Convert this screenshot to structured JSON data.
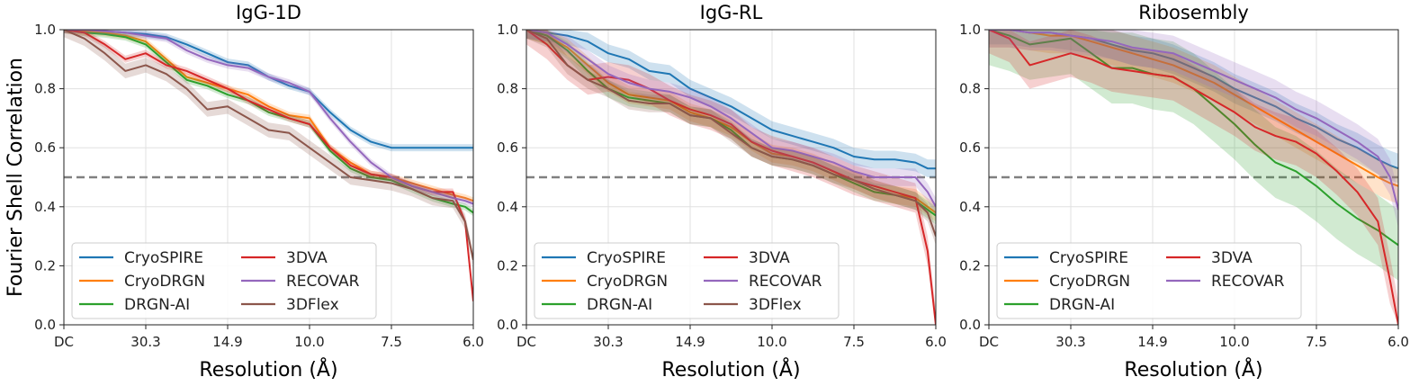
{
  "figure": {
    "ylabel": "Fourier Shell Correlation",
    "xlabel": "Resolution (Å)",
    "x_tick_labels": [
      "DC",
      "30.3",
      "14.9",
      "10.0",
      "7.5",
      "6.0"
    ],
    "y_tick_labels": [
      "0.0",
      "0.2",
      "0.4",
      "0.6",
      "0.8",
      "1.0"
    ],
    "threshold": 0.5
  },
  "colors": {
    "CryoSPIRE": "#1f77b4",
    "CryoDRGN": "#ff7f0e",
    "DRGN-AI": "#2ca02c",
    "3DVA": "#d62728",
    "RECOVAR": "#9467bd",
    "3DFlex": "#8c564b",
    "threshold": "#808080",
    "grid": "#e0e0e0"
  },
  "chart_data": [
    {
      "type": "line",
      "title": "IgG-1D",
      "xlabel": "Resolution (Å)",
      "ylabel": "Fourier Shell Correlation",
      "xlim": [
        0,
        1
      ],
      "ylim": [
        0,
        1
      ],
      "grid": true,
      "legend_position": "lower-left",
      "x_ticks": [
        0,
        0.2,
        0.4,
        0.6,
        0.8,
        1.0
      ],
      "x_tick_labels": [
        "DC",
        "30.3",
        "14.9",
        "10.0",
        "7.5",
        "6.0"
      ],
      "x": [
        0,
        0.05,
        0.1,
        0.15,
        0.2,
        0.25,
        0.3,
        0.35,
        0.4,
        0.45,
        0.5,
        0.55,
        0.6,
        0.65,
        0.7,
        0.75,
        0.8,
        0.85,
        0.9,
        0.95,
        0.98,
        1.0
      ],
      "series": [
        {
          "name": "CryoSPIRE",
          "band": 0.012,
          "values": [
            1.0,
            1.0,
            0.995,
            0.99,
            0.985,
            0.975,
            0.95,
            0.92,
            0.89,
            0.88,
            0.84,
            0.81,
            0.79,
            0.72,
            0.66,
            0.62,
            0.6,
            0.6,
            0.6,
            0.6,
            0.6,
            0.6
          ]
        },
        {
          "name": "CryoDRGN",
          "band": 0.012,
          "values": [
            1.0,
            0.995,
            0.99,
            0.98,
            0.96,
            0.9,
            0.84,
            0.82,
            0.8,
            0.78,
            0.74,
            0.71,
            0.7,
            0.6,
            0.55,
            0.51,
            0.5,
            0.48,
            0.46,
            0.44,
            0.43,
            0.42
          ]
        },
        {
          "name": "DRGN-AI",
          "band": 0.012,
          "values": [
            1.0,
            0.99,
            0.985,
            0.975,
            0.95,
            0.89,
            0.83,
            0.81,
            0.78,
            0.76,
            0.72,
            0.7,
            0.68,
            0.59,
            0.53,
            0.5,
            0.49,
            0.46,
            0.43,
            0.41,
            0.4,
            0.38
          ]
        },
        {
          "name": "3DVA",
          "band": 0.012,
          "values": [
            1.0,
            0.99,
            0.95,
            0.9,
            0.92,
            0.88,
            0.86,
            0.83,
            0.8,
            0.76,
            0.73,
            0.7,
            0.68,
            0.6,
            0.54,
            0.51,
            0.5,
            0.47,
            0.45,
            0.45,
            0.35,
            0.08
          ]
        },
        {
          "name": "RECOVAR",
          "band": 0.012,
          "values": [
            1.0,
            1.0,
            0.995,
            0.99,
            0.98,
            0.97,
            0.93,
            0.9,
            0.88,
            0.87,
            0.84,
            0.82,
            0.79,
            0.7,
            0.62,
            0.55,
            0.5,
            0.47,
            0.45,
            0.43,
            0.42,
            0.41
          ]
        },
        {
          "name": "3DFlex",
          "band": 0.025,
          "values": [
            1.0,
            0.97,
            0.92,
            0.86,
            0.88,
            0.85,
            0.8,
            0.73,
            0.74,
            0.7,
            0.66,
            0.65,
            0.6,
            0.55,
            0.5,
            0.49,
            0.48,
            0.46,
            0.43,
            0.42,
            0.35,
            0.22
          ]
        }
      ]
    },
    {
      "type": "line",
      "title": "IgG-RL",
      "xlabel": "Resolution (Å)",
      "xlim": [
        0,
        1
      ],
      "ylim": [
        0,
        1
      ],
      "grid": true,
      "legend_position": "lower-left",
      "x_ticks": [
        0,
        0.2,
        0.4,
        0.6,
        0.8,
        1.0
      ],
      "x_tick_labels": [
        "DC",
        "30.3",
        "14.9",
        "10.0",
        "7.5",
        "6.0"
      ],
      "x": [
        0,
        0.05,
        0.1,
        0.15,
        0.2,
        0.25,
        0.3,
        0.35,
        0.4,
        0.45,
        0.5,
        0.55,
        0.6,
        0.65,
        0.7,
        0.75,
        0.8,
        0.85,
        0.9,
        0.95,
        0.98,
        1.0
      ],
      "series": [
        {
          "name": "CryoSPIRE",
          "band": 0.03,
          "values": [
            1.0,
            0.99,
            0.98,
            0.96,
            0.92,
            0.9,
            0.86,
            0.85,
            0.8,
            0.77,
            0.74,
            0.7,
            0.66,
            0.64,
            0.62,
            0.6,
            0.57,
            0.56,
            0.56,
            0.55,
            0.53,
            0.53
          ]
        },
        {
          "name": "CryoDRGN",
          "band": 0.03,
          "values": [
            1.0,
            0.98,
            0.94,
            0.88,
            0.82,
            0.78,
            0.77,
            0.76,
            0.72,
            0.7,
            0.67,
            0.62,
            0.58,
            0.57,
            0.55,
            0.52,
            0.49,
            0.46,
            0.44,
            0.43,
            0.4,
            0.38
          ]
        },
        {
          "name": "DRGN-AI",
          "band": 0.03,
          "values": [
            1.0,
            0.98,
            0.93,
            0.86,
            0.8,
            0.77,
            0.76,
            0.75,
            0.71,
            0.7,
            0.66,
            0.6,
            0.57,
            0.56,
            0.54,
            0.51,
            0.48,
            0.45,
            0.44,
            0.42,
            0.39,
            0.37
          ]
        },
        {
          "name": "3DVA",
          "band": 0.05,
          "values": [
            1.0,
            0.95,
            0.88,
            0.83,
            0.84,
            0.83,
            0.8,
            0.76,
            0.73,
            0.71,
            0.68,
            0.62,
            0.59,
            0.57,
            0.55,
            0.52,
            0.49,
            0.47,
            0.45,
            0.43,
            0.25,
            0.0
          ]
        },
        {
          "name": "RECOVAR",
          "band": 0.03,
          "values": [
            1.0,
            0.99,
            0.95,
            0.9,
            0.85,
            0.82,
            0.8,
            0.79,
            0.77,
            0.74,
            0.7,
            0.65,
            0.6,
            0.59,
            0.57,
            0.55,
            0.52,
            0.5,
            0.5,
            0.5,
            0.45,
            0.4
          ]
        },
        {
          "name": "3DFlex",
          "band": 0.03,
          "values": [
            1.0,
            0.97,
            0.88,
            0.83,
            0.8,
            0.76,
            0.75,
            0.75,
            0.71,
            0.7,
            0.65,
            0.6,
            0.57,
            0.56,
            0.54,
            0.51,
            0.49,
            0.46,
            0.44,
            0.42,
            0.38,
            0.3
          ]
        }
      ]
    },
    {
      "type": "line",
      "title": "Ribosembly",
      "xlabel": "Resolution (Å)",
      "xlim": [
        0,
        1
      ],
      "ylim": [
        0,
        1
      ],
      "grid": true,
      "legend_position": "lower-left",
      "x_ticks": [
        0,
        0.2,
        0.4,
        0.6,
        0.8,
        1.0
      ],
      "x_tick_labels": [
        "DC",
        "30.3",
        "14.9",
        "10.0",
        "7.5",
        "6.0"
      ],
      "x": [
        0,
        0.05,
        0.1,
        0.15,
        0.2,
        0.25,
        0.3,
        0.35,
        0.4,
        0.45,
        0.5,
        0.55,
        0.6,
        0.65,
        0.7,
        0.75,
        0.8,
        0.85,
        0.9,
        0.95,
        0.98,
        1.0
      ],
      "series": [
        {
          "name": "CryoSPIRE",
          "band": 0.05,
          "values": [
            1.0,
            1.0,
            0.99,
            0.99,
            0.98,
            0.97,
            0.95,
            0.93,
            0.92,
            0.9,
            0.87,
            0.84,
            0.8,
            0.77,
            0.74,
            0.7,
            0.67,
            0.63,
            0.6,
            0.56,
            0.54,
            0.53
          ]
        },
        {
          "name": "CryoDRGN",
          "band": 0.06,
          "values": [
            1.0,
            1.0,
            0.99,
            0.98,
            0.98,
            0.96,
            0.94,
            0.92,
            0.9,
            0.88,
            0.85,
            0.82,
            0.78,
            0.74,
            0.7,
            0.66,
            0.62,
            0.58,
            0.54,
            0.5,
            0.48,
            0.47
          ]
        },
        {
          "name": "DRGN-AI",
          "band": 0.12,
          "values": [
            1.0,
            0.98,
            0.95,
            0.96,
            0.97,
            0.92,
            0.87,
            0.87,
            0.85,
            0.84,
            0.8,
            0.74,
            0.68,
            0.61,
            0.55,
            0.52,
            0.47,
            0.41,
            0.36,
            0.32,
            0.29,
            0.27
          ]
        },
        {
          "name": "3DVA",
          "band": 0.08,
          "values": [
            1.0,
            0.97,
            0.88,
            0.9,
            0.92,
            0.9,
            0.87,
            0.86,
            0.85,
            0.84,
            0.8,
            0.76,
            0.72,
            0.67,
            0.64,
            0.62,
            0.58,
            0.52,
            0.45,
            0.35,
            0.15,
            0.0
          ]
        },
        {
          "name": "RECOVAR",
          "band": 0.06,
          "values": [
            1.0,
            1.0,
            0.99,
            0.99,
            0.98,
            0.97,
            0.96,
            0.94,
            0.93,
            0.92,
            0.89,
            0.86,
            0.83,
            0.8,
            0.77,
            0.73,
            0.7,
            0.66,
            0.62,
            0.57,
            0.5,
            0.39
          ]
        }
      ]
    }
  ],
  "legends": [
    {
      "col1": [
        "CryoSPIRE",
        "CryoDRGN",
        "DRGN-AI"
      ],
      "col2": [
        "3DVA",
        "RECOVAR",
        "3DFlex"
      ]
    },
    {
      "col1": [
        "CryoSPIRE",
        "CryoDRGN",
        "DRGN-AI"
      ],
      "col2": [
        "3DVA",
        "RECOVAR",
        "3DFlex"
      ]
    },
    {
      "col1": [
        "CryoSPIRE",
        "CryoDRGN",
        "DRGN-AI"
      ],
      "col2": [
        "3DVA",
        "RECOVAR"
      ]
    }
  ]
}
